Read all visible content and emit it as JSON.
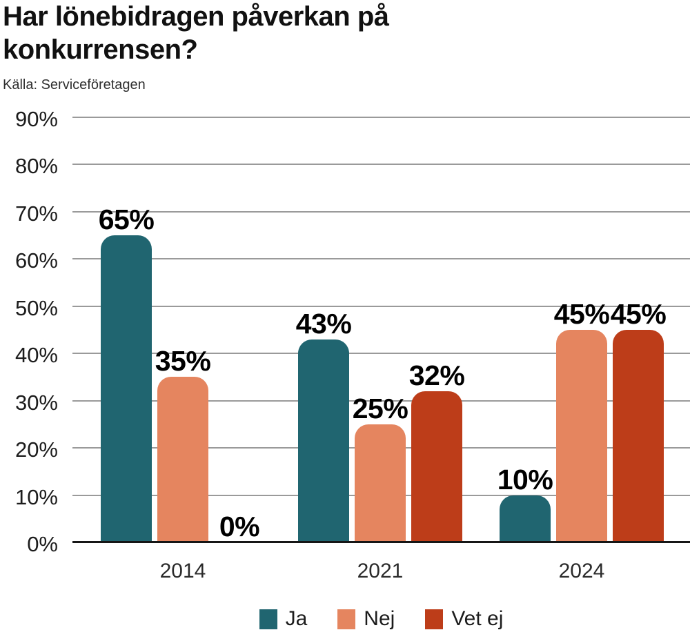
{
  "chart_data": {
    "type": "bar",
    "title": "Har lönebidragen påverkan på konkurrensen?",
    "source": "Källa: Serviceföretagen",
    "categories": [
      "2014",
      "2021",
      "2024"
    ],
    "series": [
      {
        "name": "Ja",
        "color": "#206570",
        "values": [
          65,
          43,
          10
        ]
      },
      {
        "name": "Nej",
        "color": "#e5855f",
        "values": [
          35,
          25,
          45
        ]
      },
      {
        "name": "Vet ej",
        "color": "#bd3d19",
        "values": [
          0,
          32,
          45
        ]
      }
    ],
    "value_suffix": "%",
    "ylabel": "",
    "xlabel": "",
    "ylim": [
      0,
      90
    ],
    "ytick_step": 10,
    "ytick_suffix": "%",
    "grid": true,
    "grid_color": "#9a9a9a",
    "axis_color": "#161616",
    "label_color": "#000000",
    "legend_position": "bottom"
  }
}
